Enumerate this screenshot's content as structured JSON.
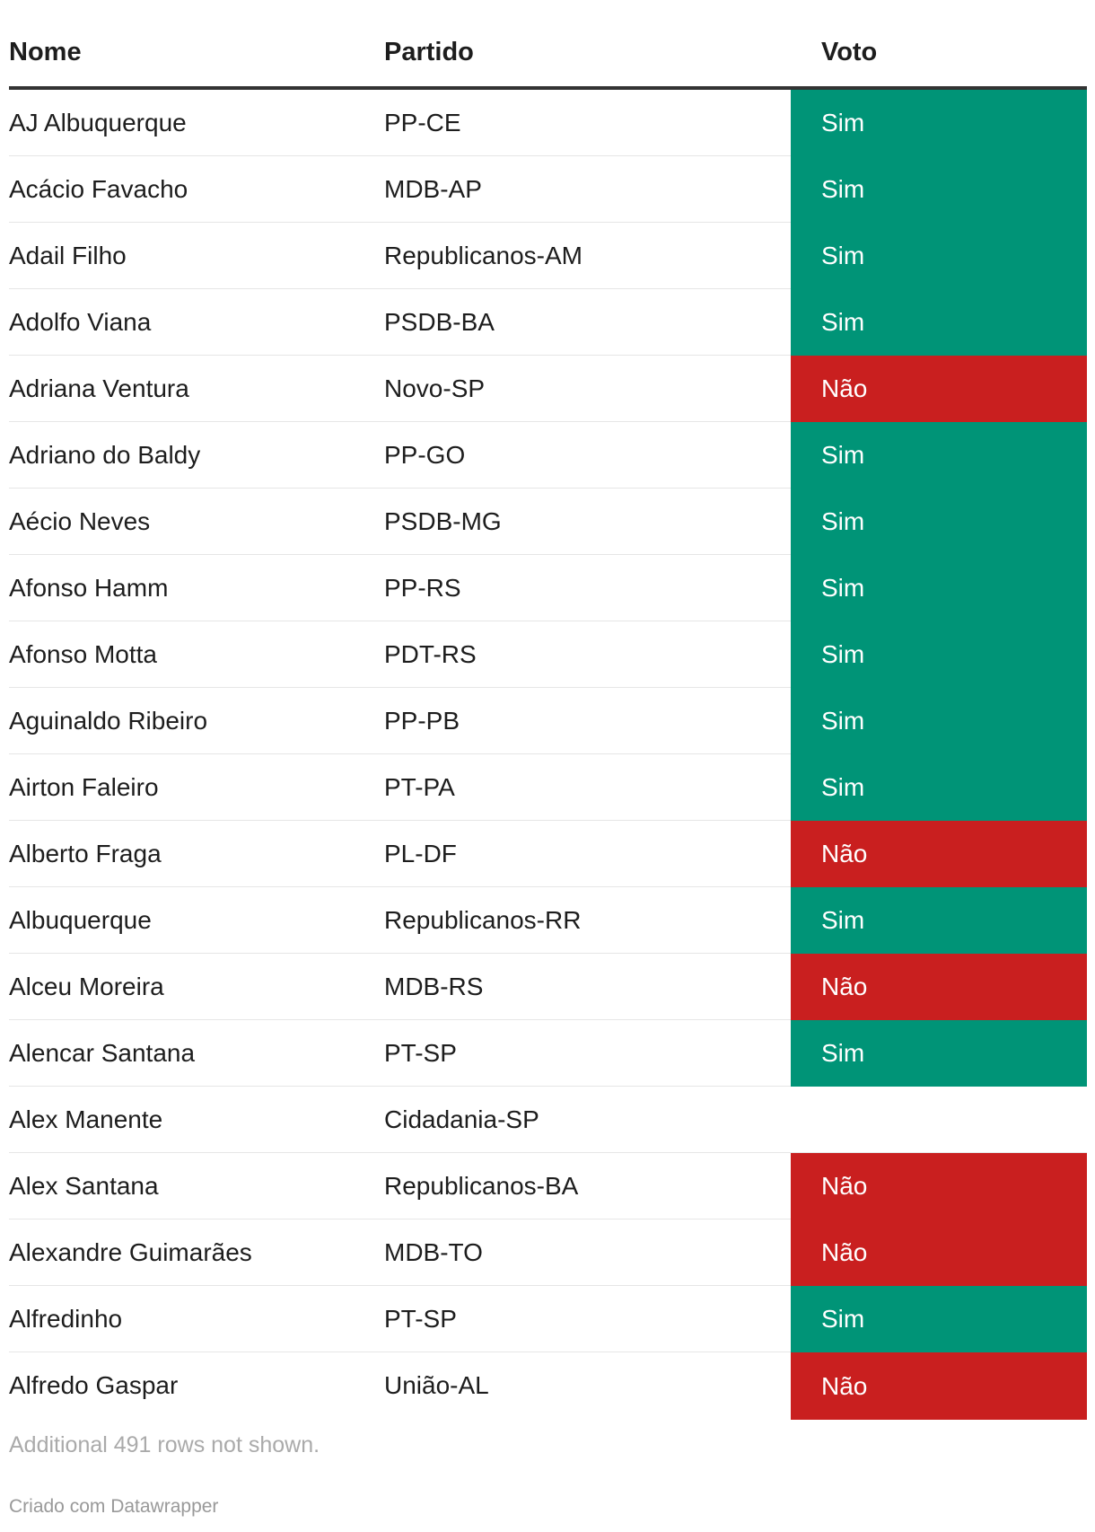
{
  "header": {
    "nome": "Nome",
    "partido": "Partido",
    "voto": "Voto"
  },
  "colors": {
    "sim": "#009477",
    "nao": "#c91f1f"
  },
  "rows": [
    {
      "nome": "AJ Albuquerque",
      "partido": "PP-CE",
      "voto": "Sim"
    },
    {
      "nome": "Acácio Favacho",
      "partido": "MDB-AP",
      "voto": "Sim"
    },
    {
      "nome": "Adail Filho",
      "partido": "Republicanos-AM",
      "voto": "Sim"
    },
    {
      "nome": "Adolfo Viana",
      "partido": "PSDB-BA",
      "voto": "Sim"
    },
    {
      "nome": "Adriana Ventura",
      "partido": "Novo-SP",
      "voto": "Não"
    },
    {
      "nome": "Adriano do Baldy",
      "partido": "PP-GO",
      "voto": "Sim"
    },
    {
      "nome": "Aécio Neves",
      "partido": "PSDB-MG",
      "voto": "Sim"
    },
    {
      "nome": "Afonso Hamm",
      "partido": "PP-RS",
      "voto": "Sim"
    },
    {
      "nome": "Afonso Motta",
      "partido": "PDT-RS",
      "voto": "Sim"
    },
    {
      "nome": "Aguinaldo Ribeiro",
      "partido": "PP-PB",
      "voto": "Sim"
    },
    {
      "nome": "Airton Faleiro",
      "partido": "PT-PA",
      "voto": "Sim"
    },
    {
      "nome": "Alberto Fraga",
      "partido": "PL-DF",
      "voto": "Não"
    },
    {
      "nome": "Albuquerque",
      "partido": "Republicanos-RR",
      "voto": "Sim"
    },
    {
      "nome": "Alceu Moreira",
      "partido": "MDB-RS",
      "voto": "Não"
    },
    {
      "nome": "Alencar Santana",
      "partido": "PT-SP",
      "voto": "Sim"
    },
    {
      "nome": "Alex Manente",
      "partido": "Cidadania-SP",
      "voto": ""
    },
    {
      "nome": "Alex Santana",
      "partido": "Republicanos-BA",
      "voto": "Não"
    },
    {
      "nome": "Alexandre Guimarães",
      "partido": "MDB-TO",
      "voto": "Não"
    },
    {
      "nome": "Alfredinho",
      "partido": "PT-SP",
      "voto": "Sim"
    },
    {
      "nome": "Alfredo Gaspar",
      "partido": "União-AL",
      "voto": "Não"
    }
  ],
  "footer": {
    "note": "Additional 491 rows not shown.",
    "credit": "Criado com Datawrapper"
  }
}
